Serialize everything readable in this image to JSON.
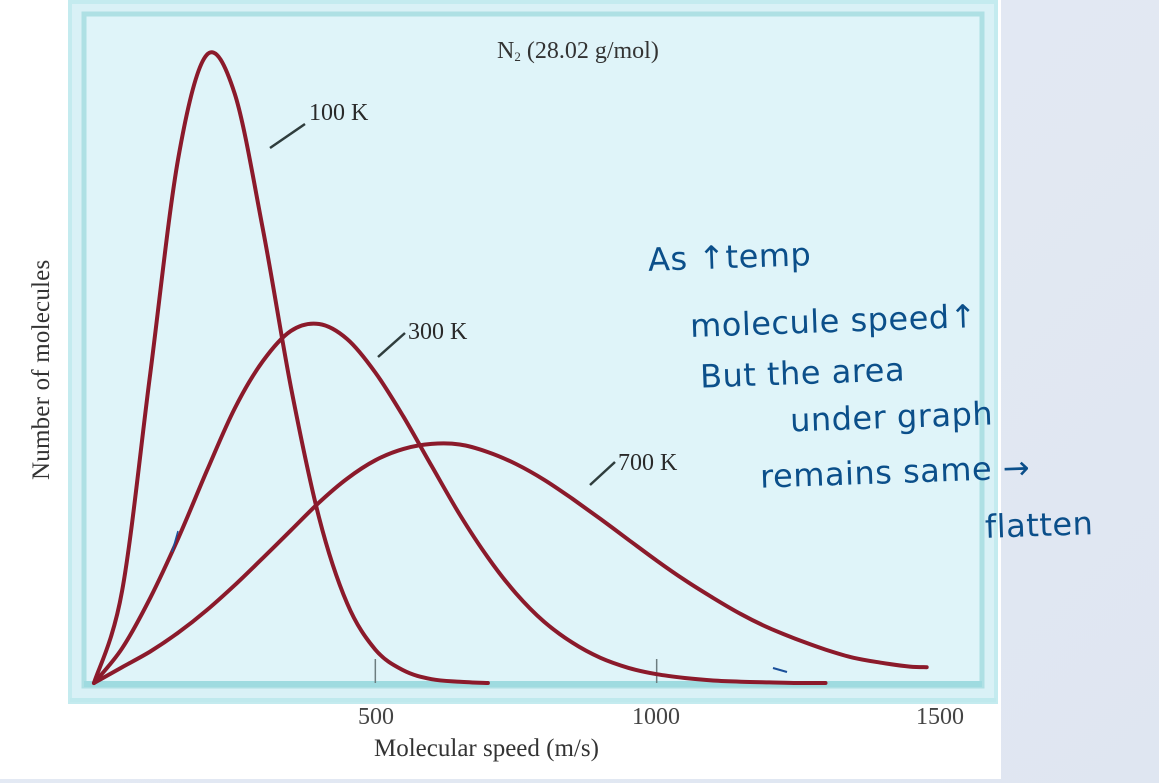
{
  "chart_data": {
    "type": "line",
    "title": "N2 (28.02 g/mol)",
    "title_parts": {
      "species": "N",
      "subscript": "2",
      "rest": " (28.02 g/mol)"
    },
    "xlabel": "Molecular speed (m/s)",
    "ylabel": "Number of molecules",
    "xlim": [
      0,
      1500
    ],
    "ylim": [
      0,
      105
    ],
    "x_ticks": [
      500,
      1000,
      1500
    ],
    "x_tick_labels": [
      "500",
      "1000",
      "1500"
    ],
    "y_ticks": [],
    "grid": false,
    "legend": "inline labels with leader lines",
    "line_color": "#8b1a2b",
    "plot_background": "#dff4f9",
    "frame_color": "#b3e4e8",
    "x": [
      0,
      50,
      100,
      150,
      200,
      250,
      300,
      350,
      400,
      450,
      500,
      550,
      600,
      650,
      700,
      750,
      800,
      850,
      900,
      950,
      1000,
      1050,
      1100,
      1150,
      1200,
      1250,
      1300,
      1350,
      1400,
      1450,
      1480
    ],
    "series": [
      {
        "name": "100 K",
        "label": "100 K",
        "values": [
          0,
          14.6,
          49.1,
          83.3,
          99.5,
          93.4,
          72.0,
          46.9,
          26.2,
          12.6,
          5.3,
          2.0,
          0.6,
          0.2,
          0,
          null,
          null,
          null,
          null,
          null,
          null,
          null,
          null,
          null,
          null,
          null,
          null,
          null,
          null,
          null,
          null
        ]
      },
      {
        "name": "300 K",
        "label": "300 K",
        "values": [
          0,
          5.5,
          13.5,
          23.0,
          33.5,
          43.5,
          51.0,
          55.8,
          56.9,
          54.5,
          49.2,
          42.2,
          34.4,
          26.7,
          19.9,
          14.2,
          9.7,
          6.4,
          4.0,
          2.4,
          1.4,
          0.8,
          0.4,
          0.2,
          0.1,
          0,
          0,
          null,
          null,
          null,
          null
        ]
      },
      {
        "name": "700 K",
        "label": "700 K",
        "values": [
          0,
          2.5,
          5.0,
          8.0,
          11.5,
          15.5,
          19.8,
          24.2,
          28.6,
          32.4,
          35.3,
          37.1,
          37.9,
          37.8,
          36.6,
          34.7,
          32.2,
          29.2,
          26.0,
          22.7,
          19.4,
          16.3,
          13.5,
          10.9,
          8.7,
          6.9,
          5.3,
          4.0,
          3.2,
          2.6,
          2.5
        ]
      }
    ],
    "annotations": [
      "As ↑temp",
      "molecule speed↑",
      "But the area",
      "under graph",
      "remains same →",
      "flatten"
    ]
  },
  "labels": {
    "ylabel": "Number of molecules",
    "xlabel": "Molecular speed (m/s)",
    "ticks": [
      "500",
      "1000",
      "1500"
    ],
    "curve_100": "100 K",
    "curve_300": "300 K",
    "curve_700": "700 K",
    "title_species": "N",
    "title_sub": "2",
    "title_rest": " (28.02 g/mol)"
  },
  "notes": {
    "line1": "As ↑temp",
    "line2": "molecule speed↑",
    "line3": "But the area",
    "line4": "under graph",
    "line5": "remains same →",
    "line6": "flatten"
  }
}
